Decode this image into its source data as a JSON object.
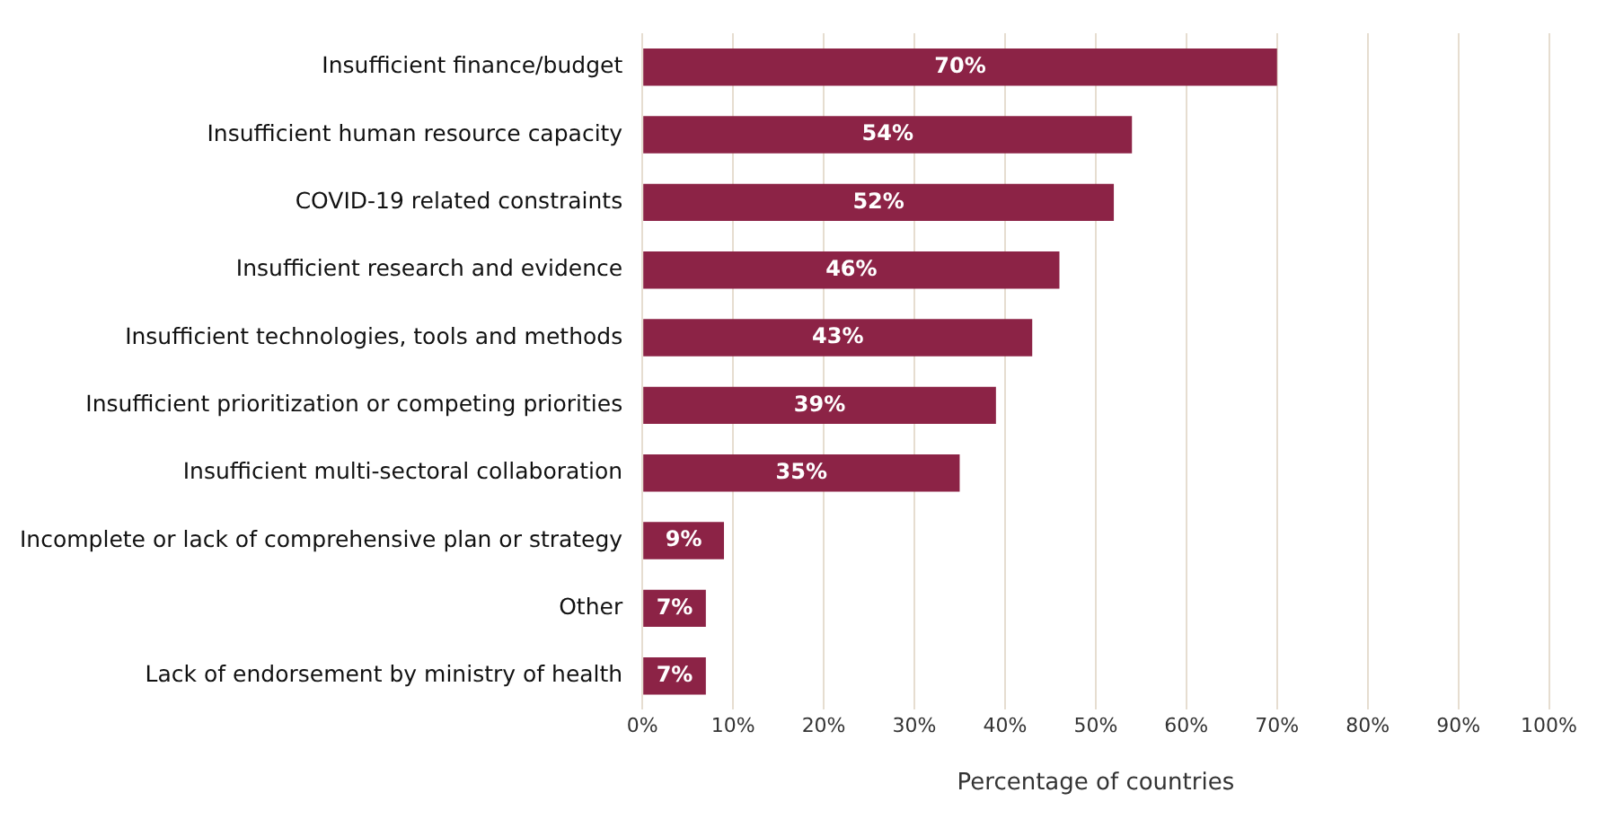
{
  "chart_data": {
    "type": "bar",
    "orientation": "horizontal",
    "xlabel": "Percentage of countries",
    "categories": [
      "Insufficient finance/budget",
      "Insufficient human resource capacity",
      "COVID-19 related constraints",
      "Insufficient research and evidence",
      "Insufficient technologies, tools and methods",
      "Insufficient prioritization or competing priorities",
      "Insufficient multi-sectoral collaboration",
      "Incomplete or lack of comprehensive plan or strategy",
      "Other",
      "Lack of endorsement by ministry of health"
    ],
    "values": [
      70,
      54,
      52,
      46,
      43,
      39,
      35,
      9,
      7,
      7
    ],
    "value_labels": [
      "70%",
      "54%",
      "52%",
      "46%",
      "43%",
      "39%",
      "35%",
      "9%",
      "7%",
      "7%"
    ],
    "color": "#8c2346",
    "xlim": [
      0,
      100
    ],
    "xticks": [
      {
        "value": 0,
        "label": "0%"
      },
      {
        "value": 10,
        "label": "10%"
      },
      {
        "value": 20,
        "label": "20%"
      },
      {
        "value": 30,
        "label": "30%"
      },
      {
        "value": 40,
        "label": "40%"
      },
      {
        "value": 50,
        "label": "50%"
      },
      {
        "value": 60,
        "label": "60%"
      },
      {
        "value": 70,
        "label": "70%"
      },
      {
        "value": 80,
        "label": "80%"
      },
      {
        "value": 90,
        "label": "90%"
      },
      {
        "value": 100,
        "label": "100%"
      }
    ],
    "grid": "x",
    "legend": false
  }
}
